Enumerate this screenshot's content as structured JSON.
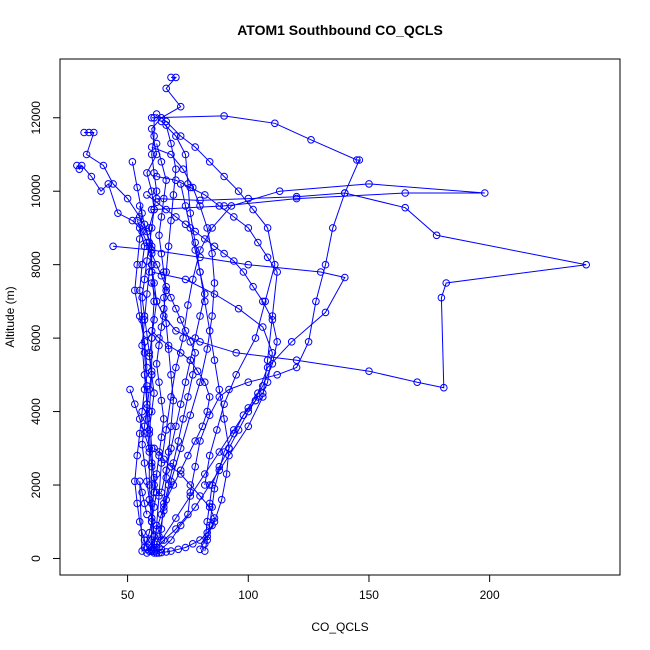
{
  "chart_data": {
    "type": "scatter",
    "title": "ATOM1 Southbound CO_QCLS",
    "xlabel": "CO_QCLS",
    "ylabel": "Altitude (m)",
    "xlim": [
      22,
      254
    ],
    "ylim": [
      -450,
      13600
    ],
    "xticks": [
      50,
      100,
      150,
      200
    ],
    "yticks": [
      0,
      2000,
      4000,
      6000,
      8000,
      10000,
      12000
    ],
    "line_color": "#0000ff",
    "marker": "open-circle",
    "series": [
      {
        "x": [
          68,
          70,
          66,
          72,
          64,
          60,
          62,
          58,
          60,
          61,
          59,
          60,
          60,
          61,
          60,
          60,
          59,
          60,
          61,
          60,
          60,
          61,
          61
        ],
        "y": [
          13100,
          13100,
          12800,
          12300,
          12000,
          11700,
          11000,
          10500,
          10000,
          9500,
          9000,
          8500,
          8000,
          7000,
          6000,
          5000,
          4000,
          3000,
          2000,
          1000,
          500,
          200,
          150
        ]
      },
      {
        "x": [
          32,
          34,
          36,
          33,
          40,
          44,
          50,
          55,
          58,
          60,
          59,
          58,
          57,
          56,
          57,
          58,
          59,
          60,
          60,
          61,
          60
        ],
        "y": [
          11600,
          11600,
          11600,
          11000,
          10700,
          10200,
          9800,
          9300,
          8900,
          8400,
          7800,
          7200,
          6500,
          5800,
          5000,
          4200,
          3400,
          2500,
          1500,
          600,
          200
        ]
      },
      {
        "x": [
          29,
          30,
          31,
          35,
          39,
          42,
          46,
          52,
          55,
          57,
          56,
          55,
          56,
          57,
          58,
          58,
          59,
          59,
          60,
          60
        ],
        "y": [
          10700,
          10600,
          10700,
          10400,
          10000,
          10200,
          9400,
          9200,
          9000,
          8500,
          8000,
          7300,
          6500,
          5600,
          4700,
          3800,
          2900,
          2000,
          1000,
          300
        ]
      },
      {
        "x": [
          60,
          90,
          111,
          126,
          145,
          146,
          140,
          135,
          132,
          128,
          125,
          120,
          112,
          100,
          92,
          88,
          84,
          80,
          78,
          76,
          75,
          70,
          65,
          62,
          60
        ],
        "y": [
          12000,
          12050,
          11850,
          11400,
          10850,
          10850,
          9950,
          9000,
          8000,
          7000,
          5900,
          5200,
          5000,
          4800,
          4600,
          4400,
          3900,
          3200,
          2500,
          1800,
          1200,
          800,
          500,
          300,
          200
        ]
      },
      {
        "x": [
          62,
          80,
          100,
          120,
          140,
          165,
          178,
          240,
          182,
          180,
          181,
          170,
          150,
          120,
          95,
          80,
          70,
          65,
          62,
          60
        ],
        "y": [
          9800,
          9750,
          9800,
          9850,
          9950,
          9550,
          8800,
          8000,
          7500,
          7100,
          4650,
          4800,
          5100,
          5400,
          5600,
          5900,
          6200,
          6600,
          7000,
          7500
        ]
      },
      {
        "x": [
          60,
          90,
          120,
          165,
          198,
          150,
          113,
          93,
          85,
          80,
          77,
          75,
          73,
          70,
          68,
          66,
          64,
          63,
          62,
          61
        ],
        "y": [
          9500,
          9600,
          9800,
          9950,
          9950,
          10200,
          10000,
          9600,
          9000,
          8400,
          7600,
          6900,
          6000,
          5200,
          4400,
          3500,
          2600,
          1700,
          900,
          300
        ]
      },
      {
        "x": [
          44,
          60,
          80,
          100,
          130,
          140,
          132,
          118,
          108,
          104,
          103,
          98,
          94,
          90,
          88,
          86,
          85,
          84,
          83,
          82
        ],
        "y": [
          8500,
          8400,
          8200,
          8000,
          7800,
          7650,
          6700,
          5900,
          5200,
          4500,
          4300,
          3900,
          3400,
          2900,
          2400,
          1900,
          1400,
          900,
          500,
          200
        ]
      },
      {
        "x": [
          60,
          74,
          86,
          96,
          106,
          110,
          108,
          106,
          104,
          103,
          100,
          96,
          92,
          88,
          85,
          84,
          83,
          82
        ],
        "y": [
          7800,
          7600,
          7200,
          6800,
          6300,
          5600,
          4800,
          4500,
          4400,
          4300,
          4000,
          3500,
          3000,
          2500,
          2000,
          1500,
          1000,
          400
        ]
      },
      {
        "x": [
          62,
          66,
          72,
          78,
          84,
          90,
          96,
          102,
          108,
          111,
          107,
          103,
          95,
          90,
          87,
          84,
          82
        ],
        "y": [
          12100,
          11900,
          11500,
          11200,
          10800,
          10400,
          10000,
          9500,
          9000,
          8000,
          7000,
          6000,
          5000,
          4200,
          3500,
          2800,
          2000
        ]
      },
      {
        "x": [
          62,
          70,
          76,
          82,
          88,
          94,
          100,
          104,
          108,
          112,
          110,
          108,
          106,
          100,
          92,
          84,
          78,
          72,
          68,
          64,
          62
        ],
        "y": [
          10400,
          10300,
          10100,
          9900,
          9600,
          9300,
          9000,
          8600,
          8200,
          7800,
          6600,
          5400,
          4400,
          3600,
          2800,
          2000,
          1400,
          900,
          500,
          250,
          150
        ]
      },
      {
        "x": [
          60,
          68,
          73,
          77,
          80,
          83,
          85,
          86,
          85,
          83,
          80,
          76,
          72,
          68,
          65,
          63,
          61
        ],
        "y": [
          11200,
          11000,
          10600,
          10100,
          9600,
          9000,
          8300,
          7500,
          6600,
          5700,
          4800,
          3900,
          3000,
          2100,
          1300,
          600,
          200
        ]
      },
      {
        "x": [
          58,
          62,
          66,
          70,
          74,
          78,
          82,
          86,
          90,
          94,
          98,
          102,
          106,
          110,
          112,
          110,
          106,
          100,
          94,
          88,
          82,
          76,
          70,
          64
        ],
        "y": [
          9900,
          9700,
          9500,
          9300,
          9100,
          8900,
          8700,
          8500,
          8300,
          8100,
          7800,
          7400,
          7000,
          6500,
          5900,
          5300,
          4700,
          4100,
          3500,
          2900,
          2300,
          1700,
          1100,
          500
        ]
      },
      {
        "x": [
          55,
          57,
          59,
          58,
          57,
          56,
          57,
          58,
          59,
          60,
          59,
          58,
          57,
          56,
          57,
          58,
          59,
          60,
          61,
          60,
          59,
          58
        ],
        "y": [
          9600,
          9100,
          8600,
          8100,
          7600,
          7100,
          6600,
          6100,
          5600,
          5100,
          4600,
          4100,
          3600,
          3100,
          2600,
          2100,
          1600,
          1100,
          600,
          300,
          200,
          150
        ]
      },
      {
        "x": [
          62,
          64,
          66,
          65,
          64,
          63,
          64,
          65,
          66,
          65,
          64,
          63,
          62,
          63,
          64,
          65,
          64,
          63,
          62,
          61
        ],
        "y": [
          11300,
          10800,
          10300,
          9800,
          9300,
          8800,
          8300,
          7800,
          7300,
          6800,
          6300,
          5800,
          5300,
          4800,
          4300,
          3800,
          3300,
          2800,
          2300,
          1800
        ]
      },
      {
        "x": [
          52,
          54,
          56,
          55,
          54,
          53,
          55,
          57,
          58,
          57,
          56,
          55,
          54,
          53,
          54,
          55,
          56,
          57,
          58,
          59
        ],
        "y": [
          10800,
          10100,
          9400,
          8700,
          8000,
          7300,
          6600,
          5900,
          5200,
          4600,
          4000,
          3400,
          2800,
          2100,
          1500,
          1000,
          700,
          500,
          300,
          200
        ]
      },
      {
        "x": [
          66,
          68,
          70,
          69,
          68,
          67,
          66,
          65,
          66,
          67,
          68,
          69,
          68,
          67,
          66,
          65,
          64,
          63
        ],
        "y": [
          11800,
          11300,
          10600,
          9900,
          9200,
          8500,
          7800,
          7100,
          6400,
          5700,
          5000,
          4300,
          3600,
          2900,
          2200,
          1500,
          800,
          300
        ]
      },
      {
        "x": [
          64,
          70,
          74,
          75,
          76,
          78,
          80,
          82,
          84,
          86,
          88,
          90,
          92,
          91,
          89,
          86,
          83,
          80
        ],
        "y": [
          11900,
          11500,
          11000,
          10200,
          9400,
          8600,
          7800,
          7000,
          6200,
          5400,
          4600,
          3800,
          3000,
          2300,
          1600,
          1000,
          600,
          250
        ]
      },
      {
        "x": [
          60,
          63,
          67,
          72,
          76,
          79,
          82,
          84,
          83,
          81,
          78,
          75,
          72,
          69,
          66,
          64,
          62,
          61
        ],
        "y": [
          6200,
          6000,
          5800,
          5600,
          5400,
          5100,
          4800,
          4400,
          4000,
          3600,
          3200,
          2800,
          2400,
          2000,
          1600,
          1200,
          800,
          400
        ]
      },
      {
        "x": [
          51,
          53,
          55,
          57,
          59,
          60,
          61,
          62,
          61,
          60,
          59,
          58,
          57,
          56,
          55,
          56,
          57,
          58
        ],
        "y": [
          4600,
          4200,
          3800,
          3400,
          3000,
          2600,
          2200,
          1800,
          1400,
          1000,
          700,
          500,
          300,
          200,
          2100,
          1800,
          1500,
          1200
        ]
      },
      {
        "x": [
          54,
          56,
          58,
          60,
          62,
          64,
          66,
          68,
          70,
          72,
          74,
          76,
          78,
          77,
          75,
          73,
          71,
          69,
          67,
          65
        ],
        "y": [
          9200,
          8900,
          8600,
          8300,
          8000,
          7700,
          7400,
          7100,
          6800,
          6500,
          6200,
          5900,
          5600,
          5000,
          4400,
          3800,
          3200,
          2600,
          2000,
          1400
        ]
      },
      {
        "x": [
          61,
          61,
          60,
          61,
          62,
          61,
          60,
          59,
          60,
          61,
          62,
          61,
          60,
          59,
          60,
          61,
          60,
          59
        ],
        "y": [
          12000,
          11500,
          11000,
          10500,
          10000,
          9500,
          9000,
          8500,
          8000,
          7500,
          7000,
          6500,
          6000,
          5500,
          5000,
          4500,
          4000,
          3500
        ]
      },
      {
        "x": [
          72,
          74,
          76,
          78,
          80,
          82,
          80,
          78,
          76,
          74,
          72,
          70,
          68,
          66,
          64
        ],
        "y": [
          10200,
          9600,
          9000,
          8400,
          7800,
          7200,
          6600,
          6000,
          5400,
          4800,
          4200,
          3600,
          3000,
          2400,
          1800
        ]
      },
      {
        "x": [
          61,
          63,
          65,
          68,
          72,
          76,
          80,
          84,
          86,
          85,
          83,
          80,
          77,
          74,
          71,
          68,
          66,
          64,
          63,
          62
        ],
        "y": [
          3000,
          2900,
          2700,
          2500,
          2300,
          2000,
          1700,
          1400,
          1100,
          900,
          700,
          500,
          400,
          300,
          250,
          200,
          180,
          160,
          150,
          150
        ]
      }
    ]
  }
}
